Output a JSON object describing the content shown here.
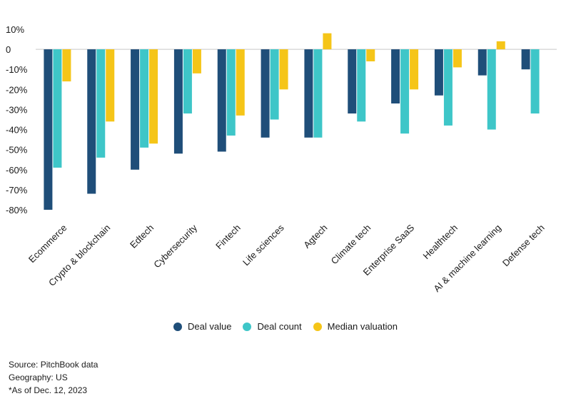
{
  "chart_data": {
    "type": "bar",
    "title": "",
    "xlabel": "",
    "ylabel": "",
    "ylim": [
      -80,
      10
    ],
    "yticks": [
      10,
      0,
      -10,
      -20,
      -30,
      -40,
      -50,
      -60,
      -70,
      -80
    ],
    "ytick_labels": [
      "10%",
      "0",
      "-10%",
      "-20%",
      "-30%",
      "-40%",
      "-50%",
      "-60%",
      "-70%",
      "-80%"
    ],
    "categories": [
      "Ecommerce",
      "Crypto & blockchain",
      "Edtech",
      "Cybersecurity",
      "Fintech",
      "Life sciences",
      "Agtech",
      "Climate tech",
      "Enterprise SaaS",
      "Healthtech",
      "AI & machine learning",
      "Defense tech"
    ],
    "series": [
      {
        "name": "Deal value",
        "color": "#1f4e79",
        "values": [
          -80,
          -72,
          -60,
          -52,
          -51,
          -44,
          -44,
          -32,
          -27,
          -23,
          -13,
          -10
        ]
      },
      {
        "name": "Deal count",
        "color": "#3ec6c8",
        "values": [
          -59,
          -54,
          -49,
          -32,
          -43,
          -35,
          -44,
          -36,
          -42,
          -38,
          -40,
          -32
        ]
      },
      {
        "name": "Median valuation",
        "color": "#f5c518",
        "values": [
          -16,
          -36,
          -47,
          -12,
          -33,
          -20,
          8,
          -6,
          -20,
          -9,
          4,
          null
        ]
      }
    ],
    "legend_position": "bottom-center"
  },
  "footnotes": {
    "source": "Source: PitchBook data",
    "geography": "Geography: US",
    "asof": "*As of Dec. 12, 2023"
  }
}
